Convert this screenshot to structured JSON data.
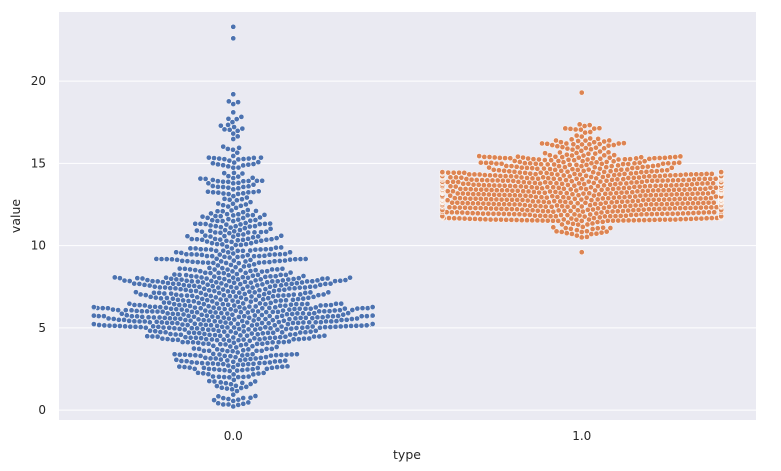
{
  "chart_data": {
    "type": "scatter",
    "subtype": "swarm",
    "title": "",
    "xlabel": "type",
    "ylabel": "value",
    "categories": [
      "0.0",
      "1.0"
    ],
    "ylim": [
      -0.6,
      24.2
    ],
    "yticks": [
      0,
      5,
      10,
      15,
      20
    ],
    "grid": true,
    "background": "#eaeaf2",
    "series": [
      {
        "category": "0.0",
        "color": "#4c72b0",
        "point_count": 1000,
        "median_approx": 6.2,
        "distribution": [
          {
            "min": 0,
            "max": 2,
            "count": 35
          },
          {
            "min": 2,
            "max": 4,
            "count": 110
          },
          {
            "min": 4,
            "max": 5,
            "count": 100
          },
          {
            "min": 5,
            "max": 6.5,
            "count": 260
          },
          {
            "min": 6.5,
            "max": 8,
            "count": 170
          },
          {
            "min": 8,
            "max": 10,
            "count": 130
          },
          {
            "min": 10,
            "max": 12,
            "count": 85
          },
          {
            "min": 12,
            "max": 14,
            "count": 50
          },
          {
            "min": 14,
            "max": 16,
            "count": 35
          },
          {
            "min": 16,
            "max": 18,
            "count": 15
          },
          {
            "min": 18,
            "max": 19.3,
            "count": 5
          }
        ],
        "outliers": [
          22.6,
          23.3
        ]
      },
      {
        "category": "1.0",
        "color": "#dd8452",
        "point_count": 1000,
        "median_approx": 13.1,
        "distribution": [
          {
            "min": 10.5,
            "max": 11.5,
            "count": 30
          },
          {
            "min": 11.5,
            "max": 12.5,
            "count": 230
          },
          {
            "min": 12.5,
            "max": 13.5,
            "count": 320
          },
          {
            "min": 13.5,
            "max": 14.5,
            "count": 250
          },
          {
            "min": 14.5,
            "max": 15.5,
            "count": 115
          },
          {
            "min": 15.5,
            "max": 16.5,
            "count": 40
          },
          {
            "min": 16.5,
            "max": 17.5,
            "count": 14
          }
        ],
        "outliers": [
          9.6,
          19.3
        ]
      }
    ]
  }
}
